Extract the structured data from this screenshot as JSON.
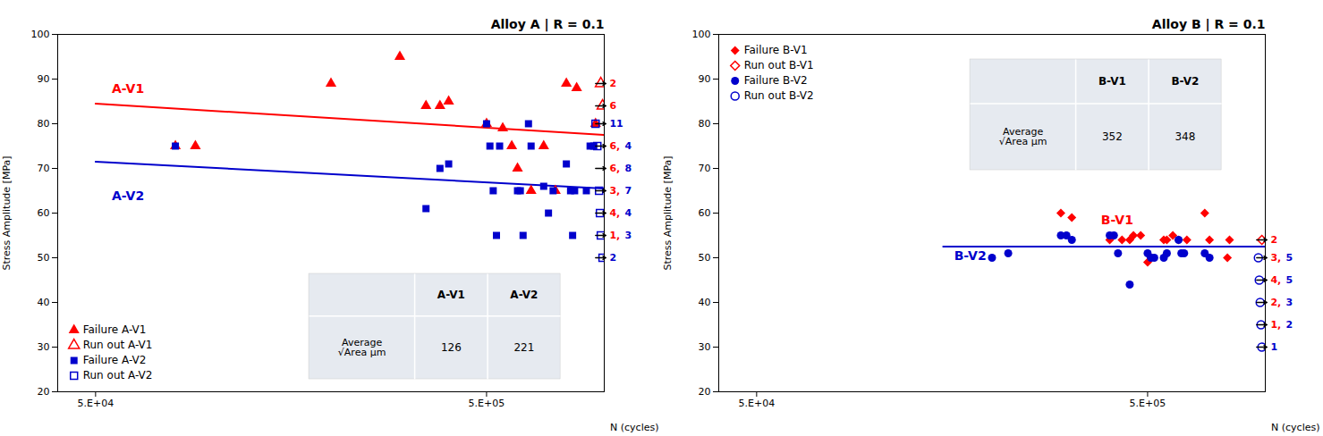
{
  "chart_data": [
    {
      "type": "scatter",
      "title": "Alloy A | R = 0.1",
      "xlabel": "N (cycles)",
      "ylabel": "Stress Amplitude [MPa]",
      "log": "x",
      "xlim": [
        40000,
        1000000
      ],
      "xticks": [
        {
          "value": 50000,
          "label": "5.E+04"
        },
        {
          "value": 500000,
          "label": "5.E+05"
        }
      ],
      "ylim": [
        20,
        100
      ],
      "yticks": [
        20,
        30,
        40,
        50,
        60,
        70,
        80,
        90,
        100
      ],
      "grid": false,
      "legend": "lower left",
      "series": [
        {
          "name": "Failure A-V1",
          "type": "scatter",
          "marker": "triangle",
          "color": "#FF0000",
          "x": [
            80000,
            90000,
            200000,
            300000,
            350000,
            380000,
            400000,
            500000,
            550000,
            580000,
            600000,
            650000,
            700000,
            750000,
            800000,
            850000,
            950000
          ],
          "values": [
            75,
            75,
            89,
            95,
            84,
            84,
            85,
            80,
            79,
            75,
            70,
            65,
            75,
            65,
            89,
            88,
            80
          ]
        },
        {
          "name": "Run out A-V1",
          "type": "scatter",
          "marker": "triangle_open",
          "color": "#FF0000",
          "x": [
            980000,
            990000
          ],
          "values": [
            89,
            84
          ]
        },
        {
          "name": "Failure A-V2",
          "type": "scatter",
          "marker": "square",
          "color": "#0000CC",
          "x": [
            80000,
            350000,
            380000,
            400000,
            500000,
            510000,
            520000,
            530000,
            540000,
            600000,
            610000,
            620000,
            640000,
            650000,
            700000,
            720000,
            740000,
            800000,
            820000,
            830000,
            840000,
            900000,
            920000,
            940000
          ],
          "values": [
            75,
            61,
            70,
            71,
            80,
            75,
            65,
            55,
            75,
            65,
            65,
            55,
            80,
            75,
            66,
            60,
            65,
            71,
            65,
            55,
            65,
            65,
            75,
            75
          ]
        },
        {
          "name": "Run out A-V2",
          "type": "scatter",
          "marker": "square_open",
          "color": "#0000CC",
          "x": [
            950000,
            960000,
            970000,
            975000,
            980000,
            990000
          ],
          "values": [
            80,
            75,
            65,
            60,
            55,
            50
          ]
        },
        {
          "type": "line",
          "color": "#FF0000",
          "x": [
            50000,
            1000000
          ],
          "values": [
            84.5,
            77.5
          ]
        },
        {
          "type": "line",
          "color": "#0000CC",
          "x": [
            50000,
            1000000
          ],
          "values": [
            71.5,
            65.5
          ]
        }
      ],
      "labels": [
        {
          "text": "A-V1",
          "x": 55000,
          "y": 87,
          "color": "#FF0000"
        },
        {
          "text": "A-V2",
          "x": 55000,
          "y": 63,
          "color": "#0000CC"
        }
      ],
      "runout_annotations": [
        {
          "y": 89,
          "texts": [
            {
              "text": "2",
              "color": "#FF0000"
            }
          ]
        },
        {
          "y": 84,
          "texts": [
            {
              "text": "6",
              "color": "#FF0000"
            }
          ]
        },
        {
          "y": 80,
          "texts": [
            {
              "text": "11",
              "color": "#0000CC"
            }
          ]
        },
        {
          "y": 75,
          "texts": [
            {
              "text": "6,",
              "color": "#FF0000"
            },
            {
              "text": "4",
              "color": "#0000CC"
            }
          ]
        },
        {
          "y": 70,
          "texts": [
            {
              "text": "6,",
              "color": "#FF0000"
            },
            {
              "text": "8",
              "color": "#0000CC"
            }
          ]
        },
        {
          "y": 65,
          "texts": [
            {
              "text": "3,",
              "color": "#FF0000"
            },
            {
              "text": "7",
              "color": "#0000CC"
            }
          ]
        },
        {
          "y": 60,
          "texts": [
            {
              "text": "4,",
              "color": "#FF0000"
            },
            {
              "text": "4",
              "color": "#0000CC"
            }
          ]
        },
        {
          "y": 55,
          "texts": [
            {
              "text": "1,",
              "color": "#FF0000"
            },
            {
              "text": "3",
              "color": "#0000CC"
            }
          ]
        },
        {
          "y": 50,
          "texts": [
            {
              "text": "2",
              "color": "#0000CC"
            }
          ]
        }
      ],
      "table": {
        "columns": [
          "A-V1",
          "A-V2"
        ],
        "row_label": "Average\n√Area μm",
        "values": [
          126,
          221
        ]
      }
    },
    {
      "type": "scatter",
      "title": "Alloy B | R = 0.1",
      "xlabel": "N (cycles)",
      "ylabel": "Stress Amplitude [MPa]",
      "log": "x",
      "xlim": [
        40000,
        1000000
      ],
      "xticks": [
        {
          "value": 50000,
          "label": "5.E+04"
        },
        {
          "value": 500000,
          "label": "5.E+05"
        }
      ],
      "ylim": [
        20,
        100
      ],
      "yticks": [
        20,
        30,
        40,
        50,
        60,
        70,
        80,
        90,
        100
      ],
      "grid": false,
      "legend": "upper left",
      "series": [
        {
          "name": "Failure B-V1",
          "type": "scatter",
          "marker": "diamond",
          "color": "#FF0000",
          "x": [
            300000,
            320000,
            400000,
            430000,
            450000,
            460000,
            480000,
            500000,
            510000,
            550000,
            560000,
            580000,
            600000,
            630000,
            700000,
            720000,
            800000,
            810000
          ],
          "values": [
            60,
            59,
            54,
            54,
            54,
            55,
            55,
            49,
            50,
            54,
            54,
            55,
            54,
            54,
            60,
            54,
            50,
            54
          ]
        },
        {
          "name": "Run out B-V1",
          "type": "scatter",
          "marker": "diamond_open",
          "color": "#FF0000",
          "x": [
            980000
          ],
          "values": [
            54
          ]
        },
        {
          "name": "Failure B-V2",
          "type": "scatter",
          "marker": "circle",
          "color": "#0000CC",
          "x": [
            200000,
            220000,
            300000,
            310000,
            320000,
            400000,
            410000,
            420000,
            450000,
            500000,
            510000,
            520000,
            550000,
            560000,
            600000,
            610000,
            620000,
            700000,
            720000
          ],
          "values": [
            50,
            51,
            55,
            55,
            54,
            55,
            55,
            51,
            44,
            51,
            50,
            50,
            50,
            51,
            54,
            51,
            51,
            51,
            50
          ]
        },
        {
          "name": "Run out B-V2",
          "type": "scatter",
          "marker": "circle_open",
          "color": "#0000CC",
          "x": [
            960000,
            965000,
            970000,
            975000,
            980000
          ],
          "values": [
            50,
            45,
            40,
            35,
            30
          ]
        },
        {
          "type": "line",
          "color": "#0000CC",
          "x": [
            150000,
            1000000
          ],
          "values": [
            52.5,
            52.5
          ]
        }
      ],
      "labels": [
        {
          "text": "B-V1",
          "x": 380000,
          "y": 57.5,
          "color": "#FF0000"
        },
        {
          "text": "B-V2",
          "x": 160000,
          "y": 49.5,
          "color": "#0000CC"
        }
      ],
      "runout_annotations": [
        {
          "y": 54,
          "texts": [
            {
              "text": "2",
              "color": "#FF0000"
            }
          ]
        },
        {
          "y": 50,
          "texts": [
            {
              "text": "3,",
              "color": "#FF0000"
            },
            {
              "text": "5",
              "color": "#0000CC"
            }
          ]
        },
        {
          "y": 45,
          "texts": [
            {
              "text": "4,",
              "color": "#FF0000"
            },
            {
              "text": "5",
              "color": "#0000CC"
            }
          ]
        },
        {
          "y": 40,
          "texts": [
            {
              "text": "2,",
              "color": "#FF0000"
            },
            {
              "text": "3",
              "color": "#0000CC"
            }
          ]
        },
        {
          "y": 35,
          "texts": [
            {
              "text": "1,",
              "color": "#FF0000"
            },
            {
              "text": "2",
              "color": "#0000CC"
            }
          ]
        },
        {
          "y": 30,
          "texts": [
            {
              "text": "1",
              "color": "#0000CC"
            }
          ]
        }
      ],
      "table": {
        "columns": [
          "B-V1",
          "B-V2"
        ],
        "row_label": "Average\n√Area μm",
        "values": [
          352,
          348
        ]
      }
    }
  ]
}
